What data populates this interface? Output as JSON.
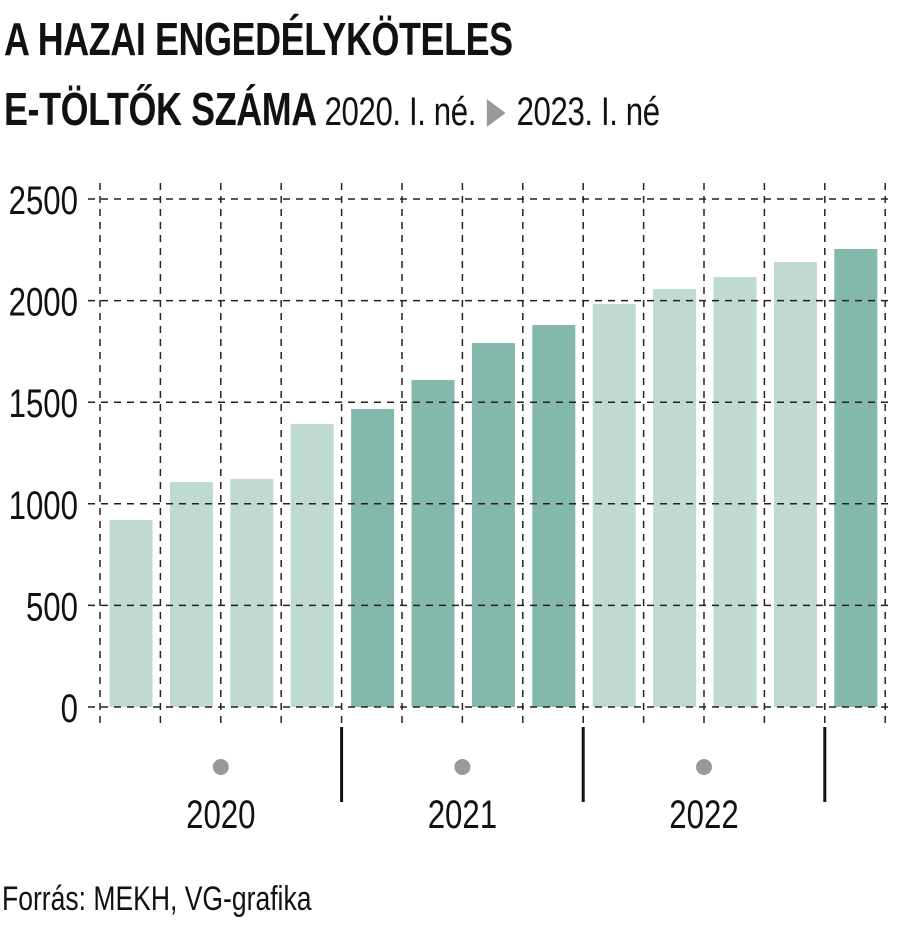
{
  "title_line1": "A HAZAI ENGEDÉLYKÖTELES",
  "title_line2": "E-TÖLTŐK SZÁMA",
  "subtitle_from": "2020. I. né.",
  "subtitle_to": "2023. I. né",
  "source": "Forrás: MEKH, VG-grafika",
  "colors": {
    "light": "#BFD9D3",
    "dark": "#85B8AC"
  },
  "chart_data": {
    "type": "bar",
    "categories": [
      "2020 I",
      "2020 II",
      "2020 III",
      "2020 IV",
      "2021 I",
      "2021 II",
      "2021 III",
      "2021 IV",
      "2022 I",
      "2022 II",
      "2022 III",
      "2022 IV",
      "2023 I"
    ],
    "values": [
      920,
      1107,
      1122,
      1393,
      1467,
      1609,
      1791,
      1880,
      1983,
      2057,
      2116,
      2190,
      2254
    ],
    "shade": [
      "light",
      "light",
      "light",
      "light",
      "dark",
      "dark",
      "dark",
      "dark",
      "light",
      "light",
      "light",
      "light",
      "dark"
    ],
    "year_labels": [
      "2020",
      "2021",
      "2022"
    ],
    "yticks": [
      "0",
      "500",
      "1000",
      "1500",
      "2000",
      "2500"
    ],
    "ylim": [
      0,
      2500
    ],
    "grid": true
  }
}
